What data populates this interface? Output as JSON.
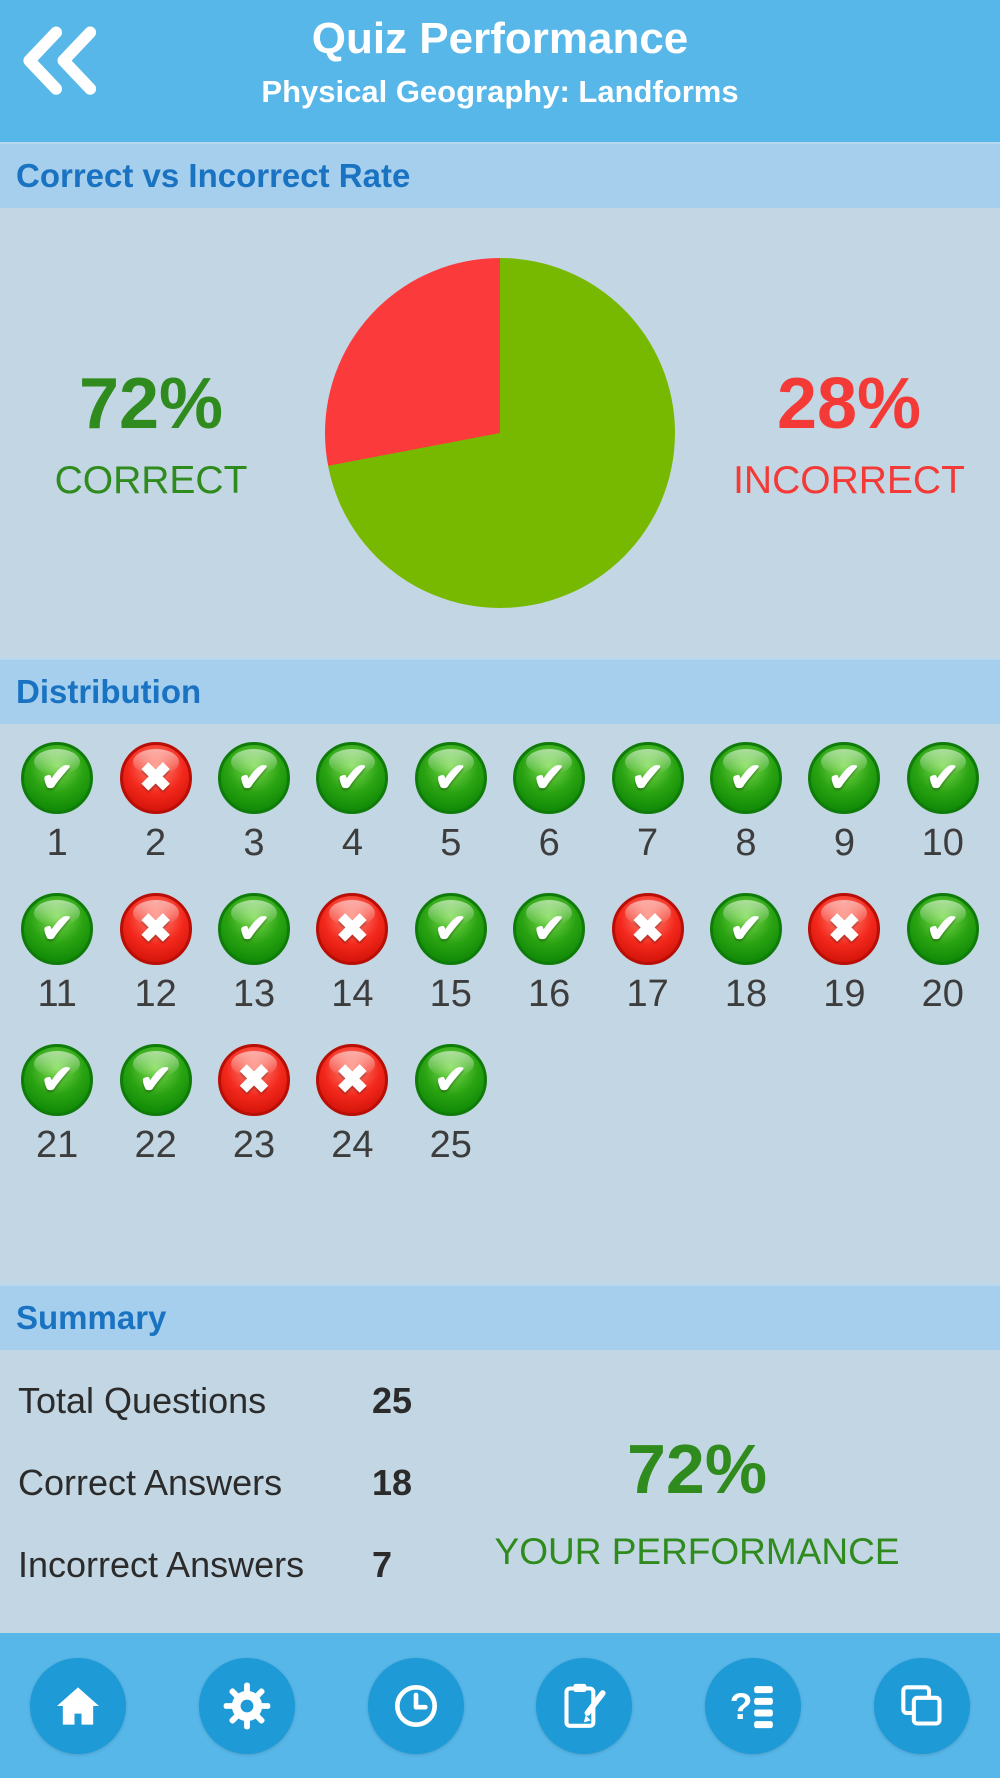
{
  "header": {
    "title": "Quiz Performance",
    "subtitle": "Physical Geography: Landforms"
  },
  "sections": {
    "rate": {
      "title": "Correct vs Incorrect Rate"
    },
    "distribution": {
      "title": "Distribution"
    },
    "summary": {
      "title": "Summary"
    }
  },
  "chart_data": {
    "type": "pie",
    "title": "Correct vs Incorrect Rate",
    "slices": [
      {
        "label": "CORRECT",
        "value": 72,
        "color": "#76b900"
      },
      {
        "label": "INCORRECT",
        "value": 28,
        "color": "#fb3a3c"
      }
    ],
    "left_label": {
      "percent": "72%",
      "caption": "CORRECT"
    },
    "right_label": {
      "percent": "28%",
      "caption": "INCORRECT"
    },
    "legend_position": "sides",
    "start_angle_deg": 0
  },
  "distribution": {
    "correct_glyph": "✔",
    "incorrect_glyph": "✖",
    "items": [
      {
        "n": 1,
        "correct": true
      },
      {
        "n": 2,
        "correct": false
      },
      {
        "n": 3,
        "correct": true
      },
      {
        "n": 4,
        "correct": true
      },
      {
        "n": 5,
        "correct": true
      },
      {
        "n": 6,
        "correct": true
      },
      {
        "n": 7,
        "correct": true
      },
      {
        "n": 8,
        "correct": true
      },
      {
        "n": 9,
        "correct": true
      },
      {
        "n": 10,
        "correct": true
      },
      {
        "n": 11,
        "correct": true
      },
      {
        "n": 12,
        "correct": false
      },
      {
        "n": 13,
        "correct": true
      },
      {
        "n": 14,
        "correct": false
      },
      {
        "n": 15,
        "correct": true
      },
      {
        "n": 16,
        "correct": true
      },
      {
        "n": 17,
        "correct": false
      },
      {
        "n": 18,
        "correct": true
      },
      {
        "n": 19,
        "correct": false
      },
      {
        "n": 20,
        "correct": true
      },
      {
        "n": 21,
        "correct": true
      },
      {
        "n": 22,
        "correct": true
      },
      {
        "n": 23,
        "correct": false
      },
      {
        "n": 24,
        "correct": false
      },
      {
        "n": 25,
        "correct": true
      }
    ]
  },
  "summary": {
    "rows": [
      {
        "label": "Total Questions",
        "value": "25"
      },
      {
        "label": "Correct Answers",
        "value": "18"
      },
      {
        "label": "Incorrect Answers",
        "value": "7"
      }
    ],
    "performance": {
      "percent": "72%",
      "caption": "YOUR PERFORMANCE"
    }
  },
  "nav": {
    "items": [
      {
        "icon": "home-icon"
      },
      {
        "icon": "settings-gear-icon"
      },
      {
        "icon": "history-clock-icon"
      },
      {
        "icon": "quiz-edit-clipboard-icon"
      },
      {
        "icon": "question-options-icon"
      },
      {
        "icon": "copy-pages-icon"
      }
    ]
  },
  "colors": {
    "header_bg": "#57b7e9",
    "section_bar_bg": "#a5cfec",
    "content_bg": "#c3d6e3",
    "section_title": "#1a73c2",
    "correct_green": "#2f8b1d",
    "incorrect_red": "#f43a36",
    "pie_green": "#76b900",
    "pie_red": "#fb3a3c",
    "nav_circle": "#1e9ad6"
  }
}
